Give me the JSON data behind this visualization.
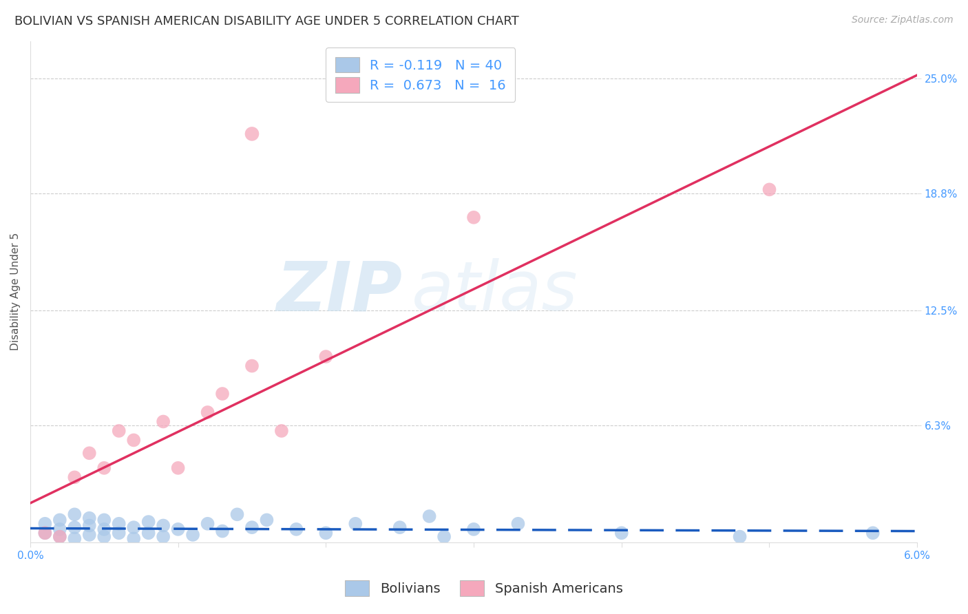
{
  "title": "BOLIVIAN VS SPANISH AMERICAN DISABILITY AGE UNDER 5 CORRELATION CHART",
  "source": "Source: ZipAtlas.com",
  "ylabel": "Disability Age Under 5",
  "watermark_zip": "ZIP",
  "watermark_atlas": "atlas",
  "xlim": [
    0.0,
    0.06
  ],
  "ylim": [
    0.0,
    0.27
  ],
  "ytick_labels": [
    "25.0%",
    "18.8%",
    "12.5%",
    "6.3%"
  ],
  "ytick_values": [
    0.25,
    0.188,
    0.125,
    0.063
  ],
  "grid_color": "#cccccc",
  "background_color": "#ffffff",
  "bolivians_color": "#aac8e8",
  "spanish_color": "#f5a8bc",
  "bolivians_line_color": "#1a5bbf",
  "spanish_line_color": "#e03060",
  "title_fontsize": 13,
  "axis_label_fontsize": 11,
  "tick_fontsize": 11,
  "legend_fontsize": 14,
  "source_fontsize": 10,
  "bolivians_x": [
    0.001,
    0.001,
    0.002,
    0.002,
    0.002,
    0.003,
    0.003,
    0.003,
    0.004,
    0.004,
    0.004,
    0.005,
    0.005,
    0.005,
    0.006,
    0.006,
    0.007,
    0.007,
    0.008,
    0.008,
    0.009,
    0.009,
    0.01,
    0.011,
    0.012,
    0.013,
    0.014,
    0.015,
    0.016,
    0.018,
    0.02,
    0.022,
    0.025,
    0.027,
    0.028,
    0.03,
    0.033,
    0.04,
    0.048,
    0.057
  ],
  "bolivians_y": [
    0.005,
    0.01,
    0.003,
    0.007,
    0.012,
    0.002,
    0.008,
    0.015,
    0.004,
    0.009,
    0.013,
    0.003,
    0.007,
    0.012,
    0.005,
    0.01,
    0.002,
    0.008,
    0.005,
    0.011,
    0.003,
    0.009,
    0.007,
    0.004,
    0.01,
    0.006,
    0.015,
    0.008,
    0.012,
    0.007,
    0.005,
    0.01,
    0.008,
    0.014,
    0.003,
    0.007,
    0.01,
    0.005,
    0.003,
    0.005
  ],
  "spanish_x": [
    0.001,
    0.002,
    0.003,
    0.004,
    0.005,
    0.006,
    0.007,
    0.009,
    0.01,
    0.012,
    0.013,
    0.015,
    0.017,
    0.02,
    0.03,
    0.05
  ],
  "spanish_y": [
    0.005,
    0.003,
    0.035,
    0.048,
    0.04,
    0.06,
    0.055,
    0.065,
    0.04,
    0.07,
    0.08,
    0.095,
    0.06,
    0.1,
    0.175,
    0.19
  ]
}
